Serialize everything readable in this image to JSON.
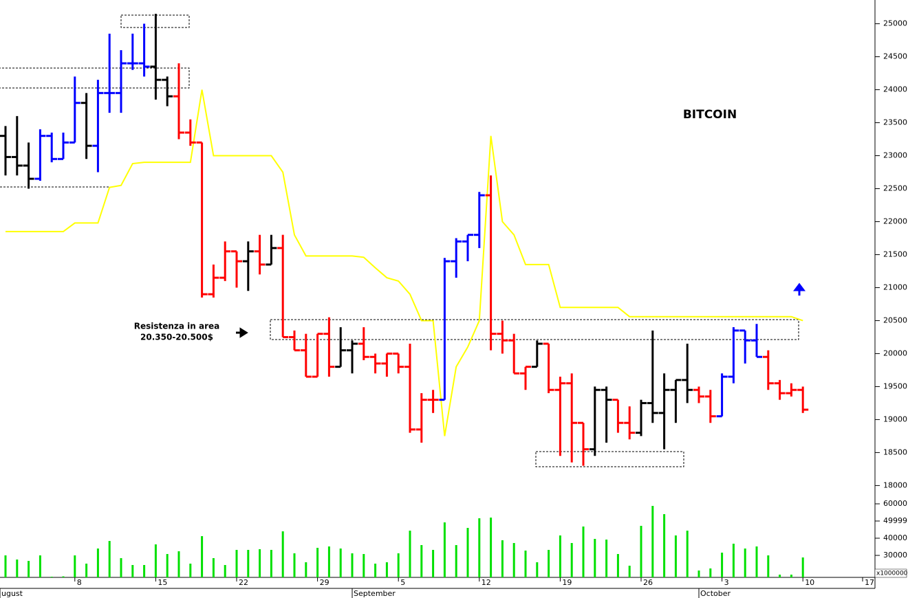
{
  "chart_data": {
    "type": "ohlc",
    "title": "BITCOIN",
    "annotations": [
      "Resistenza in area",
      "20.350-20.500$"
    ],
    "categories": [
      null,
      null,
      null,
      null,
      null,
      null,
      "8",
      null,
      null,
      null,
      null,
      null,
      null,
      "15",
      null,
      null,
      null,
      null,
      null,
      null,
      "22",
      null,
      null,
      null,
      null,
      null,
      null,
      "29",
      null,
      null,
      null,
      null,
      null,
      null,
      "5",
      null,
      null,
      null,
      null,
      null,
      null,
      "12",
      null,
      null,
      null,
      null,
      null,
      null,
      "19",
      null,
      null,
      null,
      null,
      null,
      null,
      "26",
      null,
      null,
      null,
      null,
      null,
      null,
      "3",
      null,
      null,
      null,
      null,
      null,
      null,
      "10",
      null,
      null,
      null,
      null,
      null,
      null,
      "17"
    ],
    "months": [
      "ugust",
      null,
      null,
      null,
      null,
      null,
      null,
      null,
      null,
      null,
      null,
      null,
      null,
      null,
      null,
      null,
      null,
      null,
      null,
      null,
      null,
      null,
      null,
      null,
      null,
      null,
      null,
      null,
      null,
      null,
      "September",
      null,
      null,
      null,
      null,
      null,
      null,
      null,
      null,
      null,
      null,
      null,
      null,
      null,
      null,
      null,
      null,
      null,
      null,
      null,
      null,
      null,
      null,
      null,
      null,
      null,
      null,
      null,
      null,
      null,
      "October",
      null,
      null,
      null,
      null,
      null,
      null,
      null,
      null,
      null,
      null,
      null,
      null,
      null,
      null,
      null,
      null
    ],
    "open": [
      23300,
      22980,
      22850,
      22650,
      23300,
      22950,
      23200,
      23800,
      23150,
      23950,
      23950,
      24400,
      24400,
      24350,
      24150,
      23900,
      23350,
      23200,
      20900,
      21150,
      21550,
      21400,
      21550,
      21350,
      21600,
      20250,
      20050,
      19650,
      20300,
      19800,
      20050,
      20150,
      19950,
      19850,
      20000,
      19800,
      18850,
      19300,
      19300,
      21400,
      21700,
      21800,
      22400,
      20300,
      20200,
      19700,
      19800,
      20150,
      19450,
      19550,
      18950,
      18550,
      19450,
      19300,
      18950,
      18800,
      19250,
      19100,
      19450,
      19600,
      19450,
      19350,
      19050,
      19650,
      20350,
      20200,
      19950,
      19550,
      19400,
      19450,
      null,
      null,
      null,
      null,
      null,
      null,
      null
    ],
    "high": [
      23450,
      23600,
      23200,
      23400,
      23350,
      23350,
      24200,
      23950,
      24150,
      24850,
      24600,
      24850,
      25000,
      25150,
      24200,
      24400,
      23550,
      23200,
      21350,
      21700,
      21550,
      21700,
      21800,
      21800,
      21800,
      20350,
      20300,
      20300,
      20550,
      20400,
      20200,
      20400,
      20000,
      20000,
      20000,
      20150,
      19400,
      19450,
      21450,
      21750,
      21800,
      22450,
      22700,
      20500,
      20300,
      19800,
      20200,
      20150,
      19650,
      19700,
      18950,
      19500,
      19500,
      19300,
      19200,
      19300,
      20350,
      19700,
      19600,
      20150,
      19500,
      19450,
      19700,
      20400,
      20350,
      20450,
      20050,
      19600,
      19550,
      19500,
      null,
      null,
      null,
      null,
      null,
      null,
      null
    ],
    "low": [
      22700,
      22700,
      22500,
      22620,
      22900,
      22950,
      23200,
      22950,
      22750,
      23650,
      23650,
      24300,
      24200,
      23850,
      23750,
      23250,
      23150,
      20850,
      20850,
      21100,
      21000,
      20950,
      21200,
      21350,
      20250,
      20050,
      19650,
      19650,
      19650,
      19800,
      19700,
      19900,
      19700,
      19650,
      19700,
      18800,
      18650,
      19100,
      19300,
      21150,
      21400,
      21600,
      20050,
      20000,
      19700,
      19450,
      19800,
      19400,
      18450,
      18350,
      18300,
      18450,
      18650,
      18800,
      18700,
      18750,
      18950,
      18550,
      18950,
      19250,
      19250,
      18950,
      19050,
      19550,
      19850,
      19950,
      19450,
      19300,
      19350,
      19100,
      null,
      null,
      null,
      null,
      null,
      null,
      null
    ],
    "close": [
      22980,
      22850,
      22650,
      23300,
      22950,
      23200,
      23800,
      23150,
      23950,
      23950,
      24400,
      24400,
      24350,
      24150,
      23900,
      23350,
      23200,
      20900,
      21150,
      21550,
      21400,
      21550,
      21350,
      21600,
      20250,
      20050,
      19650,
      20300,
      19800,
      20050,
      20150,
      19950,
      19850,
      20000,
      19800,
      18850,
      19300,
      19300,
      21400,
      21700,
      21800,
      22400,
      20300,
      20200,
      19700,
      19800,
      20150,
      19450,
      19550,
      18950,
      18550,
      19450,
      19300,
      18950,
      18800,
      19250,
      19100,
      19450,
      19600,
      19450,
      19350,
      19050,
      19650,
      20350,
      20200,
      19950,
      19550,
      19400,
      19450,
      19150,
      null,
      null,
      null,
      null,
      null,
      null,
      null
    ],
    "colors": [
      "#000000",
      "#000000",
      "#000000",
      "#0000ff",
      "#0000ff",
      "#0000ff",
      "#0000ff",
      "#000000",
      "#0000ff",
      "#0000ff",
      "#0000ff",
      "#0000ff",
      "#0000ff",
      "#000000",
      "#000000",
      "#ff0000",
      "#ff0000",
      "#ff0000",
      "#ff0000",
      "#ff0000",
      "#ff0000",
      "#000000",
      "#ff0000",
      "#000000",
      "#ff0000",
      "#ff0000",
      "#ff0000",
      "#ff0000",
      "#ff0000",
      "#000000",
      "#000000",
      "#ff0000",
      "#ff0000",
      "#ff0000",
      "#ff0000",
      "#ff0000",
      "#ff0000",
      "#ff0000",
      "#0000ff",
      "#0000ff",
      "#0000ff",
      "#0000ff",
      "#ff0000",
      "#ff0000",
      "#ff0000",
      "#ff0000",
      "#000000",
      "#ff0000",
      "#ff0000",
      "#ff0000",
      "#ff0000",
      "#000000",
      "#000000",
      "#ff0000",
      "#ff0000",
      "#000000",
      "#000000",
      "#000000",
      "#000000",
      "#000000",
      "#ff0000",
      "#ff0000",
      "#0000ff",
      "#0000ff",
      "#0000ff",
      "#0000ff",
      "#ff0000",
      "#ff0000",
      "#ff0000",
      "#ff0000",
      null,
      null,
      null,
      null,
      null,
      null,
      null
    ],
    "line": {
      "type": "line",
      "color": "#ffff00",
      "values": [
        21850,
        21850,
        21850,
        21850,
        21850,
        21850,
        21980,
        21980,
        21980,
        22520,
        22550,
        22880,
        22900,
        22900,
        22900,
        22900,
        22900,
        24000,
        23000,
        23000,
        23000,
        23000,
        23000,
        23000,
        22750,
        21800,
        21480,
        21480,
        21480,
        21480,
        21480,
        21460,
        21300,
        21150,
        21100,
        20900,
        20500,
        20500,
        18750,
        19800,
        20100,
        20500,
        23300,
        22000,
        21800,
        21350,
        21350,
        21350,
        20700,
        20700,
        20700,
        20700,
        20700,
        20700,
        20560,
        20560,
        20560,
        20560,
        20560,
        20560,
        20560,
        20560,
        20560,
        20560,
        20560,
        20560,
        20560,
        20560,
        20560,
        20500,
        null,
        null,
        null,
        null,
        null,
        null,
        null
      ]
    },
    "ylim": [
      17900,
      25360
    ],
    "yticks": [
      18000,
      18500,
      19000,
      19500,
      20000,
      20500,
      21000,
      21500,
      22000,
      22500,
      23000,
      23500,
      24000,
      24500,
      25000
    ],
    "volume": {
      "type": "bar",
      "color": "#00e000",
      "values": [
        30000,
        27600,
        26800,
        30000,
        17600,
        17800,
        30000,
        25200,
        34000,
        38400,
        28400,
        24400,
        24400,
        36400,
        30800,
        32400,
        25200,
        41200,
        28400,
        24400,
        33200,
        33200,
        33600,
        33200,
        44000,
        31200,
        26000,
        34400,
        35200,
        34000,
        31200,
        30800,
        25200,
        26000,
        31200,
        44400,
        36000,
        33200,
        49200,
        36000,
        46000,
        51600,
        52000,
        38800,
        37200,
        32800,
        26000,
        33200,
        41600,
        37200,
        46800,
        39600,
        39200,
        30800,
        24000,
        47200,
        58800,
        54000,
        41600,
        44400,
        21200,
        22400,
        31600,
        36800,
        34000,
        35200,
        30000,
        18800,
        18800,
        28800,
        null,
        null,
        null,
        null,
        null,
        null,
        null
      ],
      "ylim": [
        17200,
        65200
      ],
      "yticks": [
        60000,
        49999,
        40000,
        30000
      ],
      "unit_label": "x1000000"
    }
  }
}
